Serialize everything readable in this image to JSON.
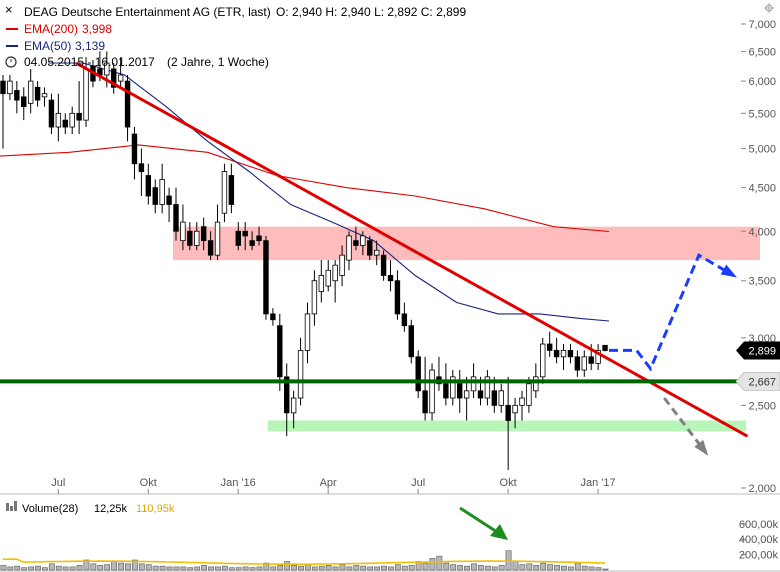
{
  "header": {
    "title": "DEAG Deutsche Entertainment AG (ETR, last)",
    "ohlc": "O: 2,940  H: 2,940  L: 2,892  C: 2,899",
    "ema200_label": "EMA(200)",
    "ema200_value": "3,998",
    "ema50_label": "EMA(50)",
    "ema50_value": "3,139",
    "range": "04.05.2015 - 16.01.2017",
    "interval": "(2 Jahre, 1 Woche)"
  },
  "colors": {
    "candle": "#000000",
    "ema200": "#e00000",
    "ema50": "#1a237e",
    "trendline": "#e00000",
    "support": "#006400",
    "resistance_zone": "#ffbcbc",
    "support_zone": "#b8f5b8",
    "forecast_up": "#1a3cff",
    "forecast_down": "#808080",
    "volume_bar": "#b8b8b8",
    "volume_avg": "#f0c000",
    "arrow_green": "#1e8c1e"
  },
  "y_axis": {
    "ticks": [
      {
        "value": 7.0,
        "label": "7,000"
      },
      {
        "value": 6.5,
        "label": "6,500"
      },
      {
        "value": 6.0,
        "label": "6,000"
      },
      {
        "value": 5.5,
        "label": "5,500"
      },
      {
        "value": 5.0,
        "label": "5,000"
      },
      {
        "value": 4.5,
        "label": "4,500"
      },
      {
        "value": 4.0,
        "label": "4,000"
      },
      {
        "value": 3.5,
        "label": "3,500"
      },
      {
        "value": 3.0,
        "label": "3,000"
      },
      {
        "value": 2.5,
        "label": "2,500"
      },
      {
        "value": 2.0,
        "label": "2,000"
      }
    ],
    "last_price_label": "2,899",
    "support_label": "2,667"
  },
  "x_axis": {
    "ticks": [
      {
        "week": 9,
        "label": "Jul"
      },
      {
        "week": 22,
        "label": "Okt"
      },
      {
        "week": 35,
        "label": "Jan '16"
      },
      {
        "week": 48,
        "label": "Apr"
      },
      {
        "week": 61,
        "label": "Jul"
      },
      {
        "week": 74,
        "label": "Okt"
      },
      {
        "week": 87,
        "label": "Jan '17"
      }
    ]
  },
  "volume": {
    "label": "Volume(28)",
    "value": "12,25k",
    "avg_value": "110,95k",
    "ticks": [
      {
        "value": 600,
        "label": "600,00k"
      },
      {
        "value": 400,
        "label": "400,00k"
      },
      {
        "value": 200,
        "label": "200,00k"
      }
    ]
  },
  "chart_data": {
    "type": "candlestick",
    "x_unit": "week index (0 = 04.05.2015)",
    "y_unit": "EUR",
    "ylim": [
      2.0,
      7.2
    ],
    "log_scale": true,
    "candles": [
      {
        "x": 0,
        "o": 6.0,
        "h": 6.1,
        "l": 5.0,
        "c": 5.8
      },
      {
        "x": 1,
        "o": 5.8,
        "h": 6.1,
        "l": 5.7,
        "c": 6.0
      },
      {
        "x": 2,
        "o": 5.85,
        "h": 6.0,
        "l": 5.5,
        "c": 5.7
      },
      {
        "x": 3,
        "o": 5.75,
        "h": 5.9,
        "l": 5.4,
        "c": 5.6
      },
      {
        "x": 4,
        "o": 5.65,
        "h": 6.2,
        "l": 5.5,
        "c": 6.0
      },
      {
        "x": 5,
        "o": 5.9,
        "h": 6.0,
        "l": 5.6,
        "c": 5.7
      },
      {
        "x": 6,
        "o": 5.75,
        "h": 5.9,
        "l": 5.6,
        "c": 5.8
      },
      {
        "x": 7,
        "o": 5.7,
        "h": 5.8,
        "l": 5.2,
        "c": 5.3
      },
      {
        "x": 8,
        "o": 5.3,
        "h": 5.8,
        "l": 5.1,
        "c": 5.5
      },
      {
        "x": 9,
        "o": 5.4,
        "h": 5.5,
        "l": 5.2,
        "c": 5.3
      },
      {
        "x": 10,
        "o": 5.3,
        "h": 5.6,
        "l": 5.2,
        "c": 5.5
      },
      {
        "x": 11,
        "o": 5.5,
        "h": 6.0,
        "l": 5.2,
        "c": 5.4
      },
      {
        "x": 12,
        "o": 5.4,
        "h": 6.4,
        "l": 5.3,
        "c": 6.2
      },
      {
        "x": 13,
        "o": 6.25,
        "h": 6.35,
        "l": 5.9,
        "c": 6.0
      },
      {
        "x": 14,
        "o": 6.2,
        "h": 6.5,
        "l": 6.0,
        "c": 6.1
      },
      {
        "x": 15,
        "o": 6.1,
        "h": 6.5,
        "l": 5.9,
        "c": 6.3
      },
      {
        "x": 16,
        "o": 6.2,
        "h": 6.3,
        "l": 5.8,
        "c": 5.9
      },
      {
        "x": 17,
        "o": 6.0,
        "h": 6.4,
        "l": 5.9,
        "c": 6.1
      },
      {
        "x": 18,
        "o": 6.0,
        "h": 6.1,
        "l": 5.1,
        "c": 5.3
      },
      {
        "x": 19,
        "o": 5.2,
        "h": 5.3,
        "l": 4.6,
        "c": 4.8
      },
      {
        "x": 20,
        "o": 4.8,
        "h": 5.0,
        "l": 4.4,
        "c": 4.7
      },
      {
        "x": 21,
        "o": 4.65,
        "h": 4.8,
        "l": 4.3,
        "c": 4.4
      },
      {
        "x": 22,
        "o": 4.5,
        "h": 4.6,
        "l": 4.2,
        "c": 4.3
      },
      {
        "x": 23,
        "o": 4.3,
        "h": 4.8,
        "l": 4.2,
        "c": 4.6
      },
      {
        "x": 24,
        "o": 4.4,
        "h": 4.5,
        "l": 4.1,
        "c": 4.3
      },
      {
        "x": 25,
        "o": 4.3,
        "h": 4.5,
        "l": 3.9,
        "c": 4.0
      },
      {
        "x": 26,
        "o": 3.9,
        "h": 4.3,
        "l": 3.8,
        "c": 4.1
      },
      {
        "x": 27,
        "o": 4.0,
        "h": 4.1,
        "l": 3.8,
        "c": 3.85
      },
      {
        "x": 28,
        "o": 3.85,
        "h": 4.1,
        "l": 3.8,
        "c": 4.0
      },
      {
        "x": 29,
        "o": 4.05,
        "h": 4.15,
        "l": 3.8,
        "c": 3.9
      },
      {
        "x": 30,
        "o": 3.9,
        "h": 4.0,
        "l": 3.7,
        "c": 3.75
      },
      {
        "x": 31,
        "o": 3.75,
        "h": 4.3,
        "l": 3.7,
        "c": 4.1
      },
      {
        "x": 32,
        "o": 4.2,
        "h": 4.8,
        "l": 4.1,
        "c": 4.7
      },
      {
        "x": 33,
        "o": 4.65,
        "h": 4.8,
        "l": 4.2,
        "c": 4.3
      },
      {
        "x": 34,
        "o": 4.0,
        "h": 4.1,
        "l": 3.8,
        "c": 3.85
      },
      {
        "x": 35,
        "o": 4.0,
        "h": 4.1,
        "l": 3.8,
        "c": 3.95
      },
      {
        "x": 36,
        "o": 3.9,
        "h": 4.0,
        "l": 3.8,
        "c": 3.85
      },
      {
        "x": 37,
        "o": 3.95,
        "h": 4.05,
        "l": 3.85,
        "c": 3.9
      },
      {
        "x": 38,
        "o": 3.9,
        "h": 3.95,
        "l": 3.15,
        "c": 3.2
      },
      {
        "x": 39,
        "o": 3.2,
        "h": 3.25,
        "l": 3.1,
        "c": 3.15
      },
      {
        "x": 40,
        "o": 3.1,
        "h": 3.2,
        "l": 2.6,
        "c": 2.7
      },
      {
        "x": 41,
        "o": 2.7,
        "h": 2.8,
        "l": 2.3,
        "c": 2.45
      },
      {
        "x": 42,
        "o": 2.45,
        "h": 2.6,
        "l": 2.35,
        "c": 2.55
      },
      {
        "x": 43,
        "o": 2.55,
        "h": 3.0,
        "l": 2.5,
        "c": 2.9
      },
      {
        "x": 44,
        "o": 2.9,
        "h": 3.3,
        "l": 2.8,
        "c": 3.2
      },
      {
        "x": 45,
        "o": 3.2,
        "h": 3.6,
        "l": 3.1,
        "c": 3.5
      },
      {
        "x": 46,
        "o": 3.4,
        "h": 3.7,
        "l": 3.3,
        "c": 3.55
      },
      {
        "x": 47,
        "o": 3.45,
        "h": 3.7,
        "l": 3.4,
        "c": 3.6
      },
      {
        "x": 48,
        "o": 3.5,
        "h": 3.7,
        "l": 3.3,
        "c": 3.65
      },
      {
        "x": 49,
        "o": 3.55,
        "h": 3.85,
        "l": 3.45,
        "c": 3.75
      },
      {
        "x": 50,
        "o": 3.7,
        "h": 4.0,
        "l": 3.6,
        "c": 3.95
      },
      {
        "x": 51,
        "o": 3.9,
        "h": 4.05,
        "l": 3.8,
        "c": 3.85
      },
      {
        "x": 52,
        "o": 3.85,
        "h": 4.0,
        "l": 3.75,
        "c": 3.95
      },
      {
        "x": 53,
        "o": 3.9,
        "h": 3.95,
        "l": 3.7,
        "c": 3.75
      },
      {
        "x": 54,
        "o": 3.75,
        "h": 3.9,
        "l": 3.65,
        "c": 3.8
      },
      {
        "x": 55,
        "o": 3.75,
        "h": 3.8,
        "l": 3.5,
        "c": 3.55
      },
      {
        "x": 56,
        "o": 3.55,
        "h": 3.7,
        "l": 3.4,
        "c": 3.5
      },
      {
        "x": 57,
        "o": 3.5,
        "h": 3.6,
        "l": 3.15,
        "c": 3.2
      },
      {
        "x": 58,
        "o": 3.2,
        "h": 3.3,
        "l": 3.05,
        "c": 3.1
      },
      {
        "x": 59,
        "o": 3.1,
        "h": 3.15,
        "l": 2.8,
        "c": 2.85
      },
      {
        "x": 60,
        "o": 2.85,
        "h": 2.9,
        "l": 2.55,
        "c": 2.6
      },
      {
        "x": 61,
        "o": 2.6,
        "h": 2.85,
        "l": 2.4,
        "c": 2.45
      },
      {
        "x": 62,
        "o": 2.45,
        "h": 2.8,
        "l": 2.4,
        "c": 2.75
      },
      {
        "x": 63,
        "o": 2.7,
        "h": 2.85,
        "l": 2.6,
        "c": 2.65
      },
      {
        "x": 64,
        "o": 2.65,
        "h": 2.8,
        "l": 2.5,
        "c": 2.55
      },
      {
        "x": 65,
        "o": 2.55,
        "h": 2.75,
        "l": 2.5,
        "c": 2.7
      },
      {
        "x": 66,
        "o": 2.65,
        "h": 2.75,
        "l": 2.45,
        "c": 2.55
      },
      {
        "x": 67,
        "o": 2.55,
        "h": 2.7,
        "l": 2.4,
        "c": 2.6
      },
      {
        "x": 68,
        "o": 2.6,
        "h": 2.8,
        "l": 2.55,
        "c": 2.7
      },
      {
        "x": 69,
        "o": 2.6,
        "h": 2.7,
        "l": 2.5,
        "c": 2.55
      },
      {
        "x": 70,
        "o": 2.55,
        "h": 2.75,
        "l": 2.5,
        "c": 2.7
      },
      {
        "x": 71,
        "o": 2.6,
        "h": 2.7,
        "l": 2.45,
        "c": 2.5
      },
      {
        "x": 72,
        "o": 2.5,
        "h": 2.65,
        "l": 2.45,
        "c": 2.6
      },
      {
        "x": 73,
        "o": 2.5,
        "h": 2.7,
        "l": 2.1,
        "c": 2.4
      },
      {
        "x": 74,
        "o": 2.45,
        "h": 2.55,
        "l": 2.35,
        "c": 2.5
      },
      {
        "x": 75,
        "o": 2.5,
        "h": 2.6,
        "l": 2.4,
        "c": 2.55
      },
      {
        "x": 76,
        "o": 2.5,
        "h": 2.7,
        "l": 2.45,
        "c": 2.65
      },
      {
        "x": 77,
        "o": 2.6,
        "h": 2.8,
        "l": 2.55,
        "c": 2.7
      },
      {
        "x": 78,
        "o": 2.7,
        "h": 3.0,
        "l": 2.65,
        "c": 2.95
      },
      {
        "x": 79,
        "o": 2.95,
        "h": 3.05,
        "l": 2.85,
        "c": 2.9
      },
      {
        "x": 80,
        "o": 2.9,
        "h": 3.0,
        "l": 2.8,
        "c": 2.85
      },
      {
        "x": 81,
        "o": 2.85,
        "h": 2.95,
        "l": 2.75,
        "c": 2.9
      },
      {
        "x": 82,
        "o": 2.9,
        "h": 2.95,
        "l": 2.8,
        "c": 2.85
      },
      {
        "x": 83,
        "o": 2.85,
        "h": 2.9,
        "l": 2.7,
        "c": 2.75
      },
      {
        "x": 84,
        "o": 2.75,
        "h": 2.9,
        "l": 2.7,
        "c": 2.85
      },
      {
        "x": 85,
        "o": 2.85,
        "h": 2.95,
        "l": 2.75,
        "c": 2.8
      },
      {
        "x": 86,
        "o": 2.8,
        "h": 2.95,
        "l": 2.75,
        "c": 2.9
      },
      {
        "x": 87,
        "o": 2.94,
        "h": 2.94,
        "l": 2.892,
        "c": 2.899
      }
    ],
    "ema200": [
      {
        "x": 0,
        "y": 4.9
      },
      {
        "x": 10,
        "y": 4.95
      },
      {
        "x": 20,
        "y": 5.05
      },
      {
        "x": 30,
        "y": 4.95
      },
      {
        "x": 40,
        "y": 4.65
      },
      {
        "x": 50,
        "y": 4.5
      },
      {
        "x": 60,
        "y": 4.4
      },
      {
        "x": 70,
        "y": 4.25
      },
      {
        "x": 80,
        "y": 4.05
      },
      {
        "x": 88,
        "y": 3.998
      }
    ],
    "ema50": [
      {
        "x": 7,
        "y": 6.3
      },
      {
        "x": 12,
        "y": 6.3
      },
      {
        "x": 18,
        "y": 6.1
      },
      {
        "x": 24,
        "y": 5.6
      },
      {
        "x": 30,
        "y": 5.1
      },
      {
        "x": 36,
        "y": 4.7
      },
      {
        "x": 42,
        "y": 4.3
      },
      {
        "x": 48,
        "y": 4.1
      },
      {
        "x": 54,
        "y": 3.9
      },
      {
        "x": 60,
        "y": 3.55
      },
      {
        "x": 66,
        "y": 3.3
      },
      {
        "x": 72,
        "y": 3.2
      },
      {
        "x": 78,
        "y": 3.2
      },
      {
        "x": 84,
        "y": 3.16
      },
      {
        "x": 88,
        "y": 3.139
      }
    ],
    "trendline": [
      {
        "x": 11,
        "y": 6.3
      },
      {
        "x": 108,
        "y": 2.3
      }
    ],
    "support_line": 2.667,
    "resistance_zone": [
      3.7,
      4.05
    ],
    "support_zone": [
      2.33,
      2.4
    ],
    "forecast_up": [
      {
        "x": 88,
        "y": 2.9
      },
      {
        "x": 92,
        "y": 2.9
      },
      {
        "x": 94,
        "y": 2.76
      },
      {
        "x": 101,
        "y": 3.75
      },
      {
        "x": 106,
        "y": 3.55
      }
    ],
    "forecast_down": [
      {
        "x": 96,
        "y": 2.55
      },
      {
        "x": 102,
        "y": 2.2
      }
    ],
    "volume_k": [
      60,
      40,
      50,
      30,
      40,
      50,
      30,
      80,
      50,
      40,
      40,
      60,
      130,
      80,
      60,
      70,
      120,
      90,
      80,
      130,
      80,
      70,
      50,
      50,
      40,
      40,
      40,
      30,
      40,
      60,
      40,
      40,
      50,
      30,
      30,
      40,
      30,
      40,
      90,
      40,
      60,
      110,
      60,
      50,
      80,
      40,
      50,
      60,
      40,
      70,
      40,
      60,
      50,
      40,
      40,
      50,
      40,
      70,
      50,
      60,
      110,
      90,
      150,
      180,
      90,
      70,
      60,
      50,
      80,
      60,
      50,
      40,
      60,
      250,
      120,
      70,
      80,
      60,
      90,
      70,
      60,
      50,
      40,
      90,
      50,
      40,
      30,
      12
    ],
    "volume_avg_k": 110.95
  }
}
